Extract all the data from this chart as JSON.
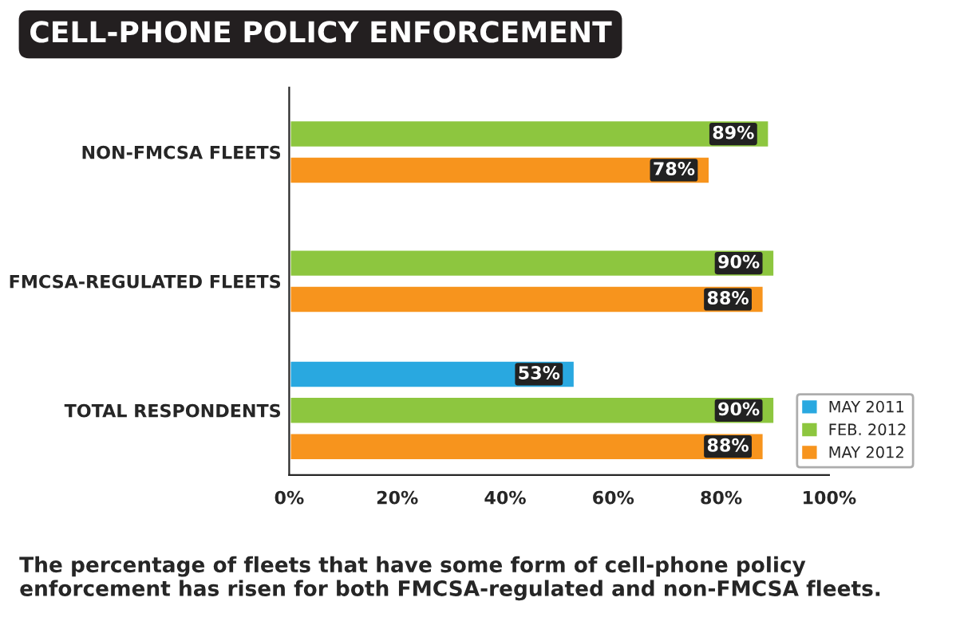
{
  "chart_data": {
    "type": "bar",
    "orientation": "horizontal",
    "title": "CELL-PHONE POLICY ENFORCEMENT",
    "categories": [
      "NON-FMCSA FLEETS",
      "FMCSA-REGULATED FLEETS",
      "TOTAL RESPONDENTS"
    ],
    "series": [
      {
        "name": "MAY 2011",
        "color": "#29a8e0",
        "values": [
          null,
          null,
          53
        ],
        "value_labels": [
          null,
          null,
          "53%"
        ]
      },
      {
        "name": "FEB. 2012",
        "color": "#8dc63f",
        "values": [
          89,
          90,
          90
        ],
        "value_labels": [
          "89%",
          "90%",
          "90%"
        ]
      },
      {
        "name": "MAY 2012",
        "color": "#f7941d",
        "values": [
          78,
          88,
          88
        ],
        "value_labels": [
          "78%",
          "88%",
          "88%"
        ]
      }
    ],
    "xlim": [
      0,
      100
    ],
    "xticks": [
      {
        "value": 0,
        "label": "0%"
      },
      {
        "value": 20,
        "label": "20%"
      },
      {
        "value": 40,
        "label": "40%"
      },
      {
        "value": 60,
        "label": "60%"
      },
      {
        "value": 80,
        "label": "80%"
      },
      {
        "value": 100,
        "label": "100%"
      }
    ],
    "legend": "bottom right",
    "grid": false,
    "annotations": [
      "The percentage of fleets that have some form of cell-phone policy enforcement has risen for both FMCSA-regulated and non-FMCSA fleets."
    ]
  }
}
